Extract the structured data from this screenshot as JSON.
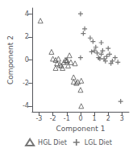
{
  "chart_data": {
    "type": "scatter",
    "title": "",
    "xlabel": "Component 1",
    "ylabel": "Component 2",
    "xlim": [
      -3.5,
      3.5
    ],
    "ylim": [
      -4.5,
      4.5
    ],
    "xticks": [
      -3,
      -2,
      -1,
      0,
      1,
      2,
      3
    ],
    "yticks": [
      -4,
      -2,
      0,
      2,
      4
    ],
    "grid": false,
    "legend": "bottom",
    "series": [
      {
        "name": "HGL Diet",
        "color": "#555555",
        "marker": "triangle",
        "x": [
          -2.9,
          -2.1,
          -2.0,
          -1.8,
          -1.7,
          -1.6,
          -1.5,
          -1.4,
          -1.3,
          -1.2,
          -1.1,
          -1.0,
          -0.9,
          -0.8,
          -0.7,
          -0.5,
          -0.4,
          -0.3,
          -0.2,
          0.0,
          0.05,
          -1.8,
          -1.0,
          -0.5,
          0.05
        ],
        "values": [
          3.4,
          0.7,
          0.1,
          0.0,
          -0.3,
          0.1,
          -0.4,
          -0.5,
          -0.7,
          -0.2,
          0.0,
          -0.1,
          -0.5,
          0.4,
          -0.2,
          -1.9,
          -0.3,
          -2.0,
          -1.9,
          -2.6,
          -4.0,
          -0.7,
          0.0,
          -1.5,
          -1.8
        ]
      },
      {
        "name": "LGL Diet",
        "color": "#555555",
        "marker": "plus",
        "x": [
          0.0,
          0.2,
          0.3,
          0.7,
          0.9,
          1.0,
          1.1,
          1.2,
          1.3,
          1.4,
          1.5,
          1.6,
          1.7,
          1.8,
          1.9,
          2.0,
          2.1,
          2.2,
          2.3,
          2.5,
          2.7,
          2.9,
          0.8,
          1.5,
          0.0
        ],
        "values": [
          4.0,
          2.3,
          2.7,
          1.9,
          1.6,
          0.8,
          1.1,
          0.6,
          0.2,
          0.1,
          0.5,
          0.8,
          0.1,
          -0.1,
          0.3,
          1.0,
          0.5,
          -0.3,
          -0.1,
          0.2,
          -0.2,
          -3.6,
          0.7,
          1.5,
          0.2
        ]
      }
    ]
  }
}
